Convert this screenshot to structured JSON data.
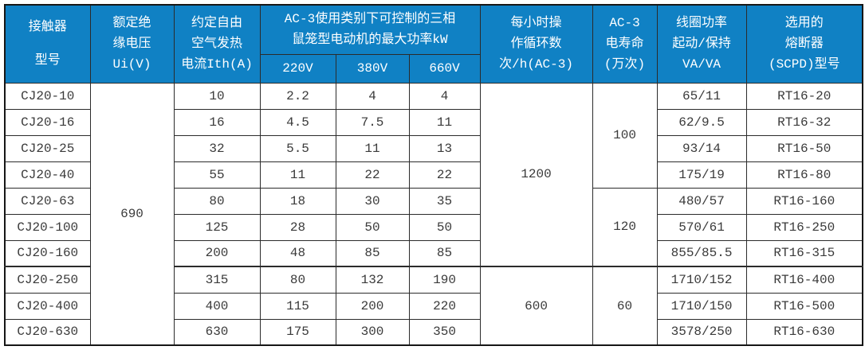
{
  "colors": {
    "header_bg": "#1081c4",
    "header_text": "#ffffff",
    "grid_line": "#2b2b2b",
    "body_text": "#3a3a3a",
    "page_bg": "#ffffff"
  },
  "table": {
    "header": {
      "model": [
        "接触器",
        "型号"
      ],
      "insulation": [
        "额定绝",
        "缘电压",
        "Ui(V)"
      ],
      "thermal": [
        "约定自由",
        "空气发热",
        "电流Ith(A)"
      ],
      "ac3_group": [
        "AC-3使用类别下可控制的三相",
        "鼠笼型电动机的最大功率kW"
      ],
      "v220": "220V",
      "v380": "380V",
      "v660": "660V",
      "cycles": [
        "每小时操",
        "作循环数",
        "次/h(AC-3)"
      ],
      "life": [
        "AC-3",
        "电寿命",
        "(万次)"
      ],
      "coil": [
        "线圈功率",
        "起动/保持",
        "VA/VA"
      ],
      "fuse": [
        "选用的",
        "熔断器",
        "(SCPD)型号"
      ]
    },
    "merged": {
      "insulation_voltage": "690",
      "cycles_high": "1200",
      "cycles_low": "600",
      "life_a": "100",
      "life_b": "120",
      "life_c": "60"
    },
    "rows": [
      {
        "model": "CJ20-10",
        "ith": "10",
        "p220": "2.2",
        "p380": "4",
        "p660": "4",
        "coil": "65/11",
        "fuse": "RT16-20"
      },
      {
        "model": "CJ20-16",
        "ith": "16",
        "p220": "4.5",
        "p380": "7.5",
        "p660": "11",
        "coil": "62/9.5",
        "fuse": "RT16-32"
      },
      {
        "model": "CJ20-25",
        "ith": "32",
        "p220": "5.5",
        "p380": "11",
        "p660": "13",
        "coil": "93/14",
        "fuse": "RT16-50"
      },
      {
        "model": "CJ20-40",
        "ith": "55",
        "p220": "11",
        "p380": "22",
        "p660": "22",
        "coil": "175/19",
        "fuse": "RT16-80"
      },
      {
        "model": "CJ20-63",
        "ith": "80",
        "p220": "18",
        "p380": "30",
        "p660": "35",
        "coil": "480/57",
        "fuse": "RT16-160"
      },
      {
        "model": "CJ20-100",
        "ith": "125",
        "p220": "28",
        "p380": "50",
        "p660": "50",
        "coil": "570/61",
        "fuse": "RT16-250"
      },
      {
        "model": "CJ20-160",
        "ith": "200",
        "p220": "48",
        "p380": "85",
        "p660": "85",
        "coil": "855/85.5",
        "fuse": "RT16-315"
      },
      {
        "model": "CJ20-250",
        "ith": "315",
        "p220": "80",
        "p380": "132",
        "p660": "190",
        "coil": "1710/152",
        "fuse": "RT16-400"
      },
      {
        "model": "CJ20-400",
        "ith": "400",
        "p220": "115",
        "p380": "200",
        "p660": "220",
        "coil": "1710/150",
        "fuse": "RT16-500"
      },
      {
        "model": "CJ20-630",
        "ith": "630",
        "p220": "175",
        "p380": "300",
        "p660": "350",
        "coil": "3578/250",
        "fuse": "RT16-630"
      }
    ]
  }
}
